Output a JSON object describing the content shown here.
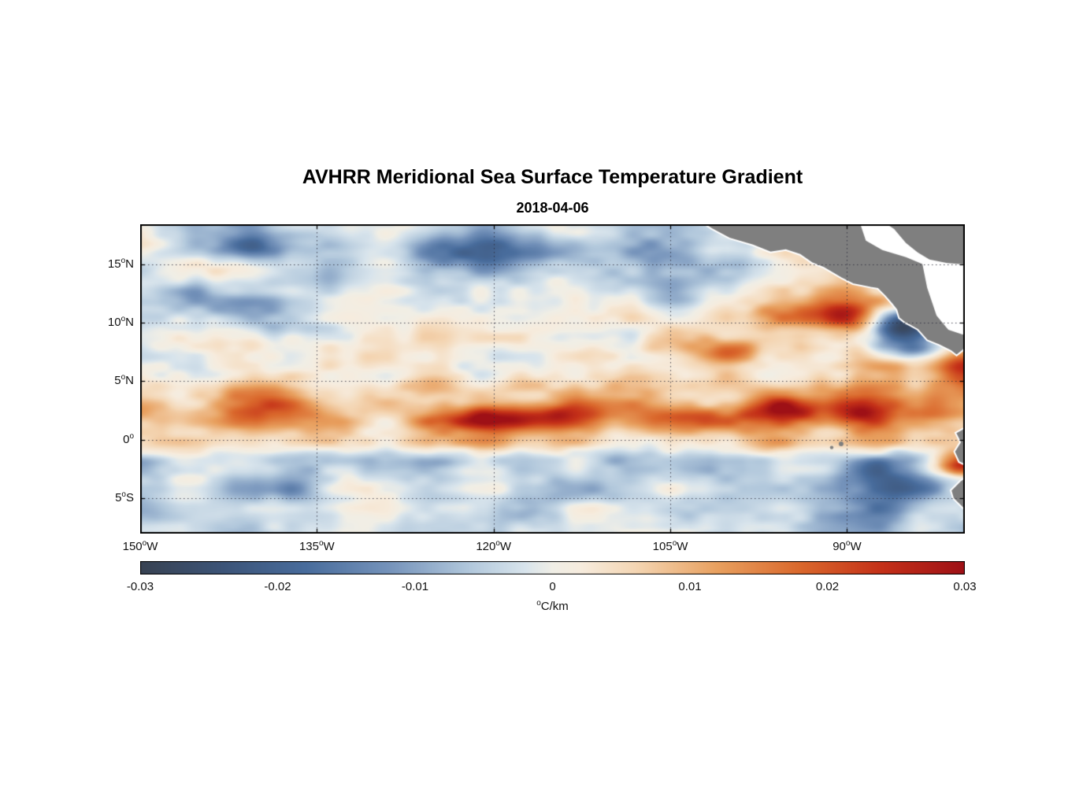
{
  "title": "AVHRR Meridional Sea Surface Temperature Gradient",
  "subtitle": "2018-04-06",
  "chart_data": {
    "type": "heatmap",
    "title": "AVHRR Meridional Sea Surface Temperature Gradient",
    "subtitle": "2018-04-06",
    "deg_char": "o",
    "lon_range": [
      -150,
      -80
    ],
    "lat_range": [
      -8,
      18.4
    ],
    "x_ticks": [
      {
        "num": "150",
        "dir": "W",
        "lon": -150
      },
      {
        "num": "135",
        "dir": "W",
        "lon": -135
      },
      {
        "num": "120",
        "dir": "W",
        "lon": -120
      },
      {
        "num": "105",
        "dir": "W",
        "lon": -105
      },
      {
        "num": "90",
        "dir": "W",
        "lon": -90
      }
    ],
    "y_ticks": [
      {
        "num": "15",
        "dir": "N",
        "lat": 15
      },
      {
        "num": "10",
        "dir": "N",
        "lat": 10
      },
      {
        "num": "5",
        "dir": "N",
        "lat": 5
      },
      {
        "num": "0",
        "dir": "",
        "lat": 0
      },
      {
        "num": "5",
        "dir": "S",
        "lat": -5
      }
    ],
    "grid_lines": {
      "lons": [
        -135,
        -120,
        -105,
        -90
      ],
      "lats": [
        15,
        10,
        5,
        0,
        -5
      ]
    },
    "colorbar": {
      "min": -0.03,
      "max": 0.03,
      "ticks": [
        {
          "label": "-0.03",
          "value": -0.03
        },
        {
          "label": "-0.02",
          "value": -0.02
        },
        {
          "label": "-0.01",
          "value": -0.01
        },
        {
          "label": "0",
          "value": 0
        },
        {
          "label": "0.01",
          "value": 0.01
        },
        {
          "label": "0.02",
          "value": 0.02
        },
        {
          "label": "0.03",
          "value": 0.03
        }
      ],
      "unit_sup": "o",
      "unit_text": "C/km"
    },
    "colormap_stops_milli": [
      [
        -30,
        "#384252"
      ],
      [
        -24,
        "#3c5478"
      ],
      [
        -18,
        "#486c9c"
      ],
      [
        -12,
        "#7492ba"
      ],
      [
        -6,
        "#b2c8dc"
      ],
      [
        -2,
        "#d8e4ec"
      ],
      [
        0,
        "#f0eee6"
      ],
      [
        2,
        "#f6ecde"
      ],
      [
        6,
        "#f4d6b4"
      ],
      [
        12,
        "#e8a05f"
      ],
      [
        18,
        "#da682c"
      ],
      [
        24,
        "#c43018"
      ],
      [
        30,
        "#9e1016"
      ]
    ],
    "grid": {
      "scale": 0.001,
      "units": "°C/km",
      "lons": [
        -150,
        -145,
        -140,
        -135,
        -130,
        -125,
        -120,
        -115,
        -110,
        -105,
        -100,
        -95,
        -90,
        -85,
        -80
      ],
      "lats": [
        18,
        16,
        14,
        12,
        10,
        8,
        6,
        4,
        2,
        0,
        -2,
        -4,
        -6,
        -8
      ],
      "values_milli": [
        [
          -2,
          -4,
          -8,
          -5,
          -3,
          -6,
          -14,
          -10,
          -6,
          -12,
          -4,
          0,
          0,
          0,
          0
        ],
        [
          -3,
          -6,
          -20,
          -8,
          -5,
          -12,
          -18,
          -12,
          -8,
          -16,
          -6,
          10,
          0,
          0,
          0
        ],
        [
          -2,
          -3,
          -12,
          -14,
          -4,
          -3,
          -8,
          -4,
          -10,
          -8,
          -4,
          6,
          10,
          0,
          0
        ],
        [
          -2,
          -8,
          -10,
          -5,
          -2,
          -2,
          -5,
          -3,
          -4,
          -6,
          2,
          8,
          16,
          6,
          0
        ],
        [
          -2,
          -2,
          -6,
          -3,
          0,
          2,
          0,
          2,
          3,
          5,
          8,
          12,
          20,
          -22,
          -4
        ],
        [
          0,
          2,
          3,
          2,
          2,
          3,
          4,
          3,
          6,
          10,
          14,
          10,
          6,
          -14,
          6
        ],
        [
          2,
          1,
          2,
          4,
          2,
          2,
          2,
          2,
          3,
          4,
          5,
          6,
          5,
          10,
          22
        ],
        [
          6,
          8,
          10,
          6,
          8,
          10,
          8,
          6,
          6,
          8,
          8,
          10,
          12,
          10,
          16
        ],
        [
          22,
          12,
          15,
          12,
          10,
          15,
          22,
          20,
          12,
          15,
          20,
          28,
          24,
          15,
          18
        ],
        [
          8,
          5,
          6,
          8,
          5,
          6,
          10,
          8,
          5,
          6,
          8,
          10,
          12,
          15,
          20
        ],
        [
          -15,
          -8,
          -5,
          -10,
          -8,
          -12,
          -10,
          -8,
          -10,
          -5,
          -5,
          -8,
          -20,
          -25,
          25
        ],
        [
          -10,
          -5,
          -8,
          -12,
          -5,
          -10,
          -8,
          -12,
          -8,
          -4,
          -6,
          -10,
          -18,
          -28,
          -10
        ],
        [
          -4,
          -2,
          -4,
          -6,
          -3,
          -5,
          -8,
          -4,
          -3,
          -3,
          -4,
          -5,
          -10,
          -15,
          -8
        ],
        [
          -2,
          -2,
          -3,
          -4,
          -2,
          -3,
          -5,
          -3,
          -2,
          -2,
          -3,
          -4,
          -8,
          -12,
          -5
        ]
      ]
    },
    "land": {
      "color": "#7f7f7f",
      "outline": "#ffffff",
      "polygons": {
        "central_america": [
          [
            -103,
            19
          ],
          [
            -101.5,
            18
          ],
          [
            -100,
            17.2
          ],
          [
            -98,
            16.6
          ],
          [
            -96.5,
            16
          ],
          [
            -95.2,
            16.2
          ],
          [
            -94,
            15.8
          ],
          [
            -93,
            15.1
          ],
          [
            -92,
            14.7
          ],
          [
            -90.5,
            13.8
          ],
          [
            -89.5,
            13.3
          ],
          [
            -88,
            13
          ],
          [
            -87.4,
            12.9
          ],
          [
            -86.8,
            12.3
          ],
          [
            -86.2,
            11.6
          ],
          [
            -85.8,
            11.1
          ],
          [
            -85.6,
            10.4
          ],
          [
            -85.1,
            10
          ],
          [
            -84.7,
            9.8
          ],
          [
            -84,
            9.4
          ],
          [
            -83.2,
            8.5
          ],
          [
            -82.2,
            8.1
          ],
          [
            -81.2,
            7.6
          ],
          [
            -80.7,
            7.2
          ],
          [
            -80.2,
            7.6
          ],
          [
            -79.7,
            8.2
          ],
          [
            -79.2,
            8.7
          ],
          [
            -78.4,
            8.6
          ],
          [
            -77.5,
            9
          ],
          [
            -76.3,
            9.8
          ],
          [
            -76.3,
            19
          ]
        ],
        "caribbean_mask": [
          [
            -89,
            18.8
          ],
          [
            -88.4,
            17
          ],
          [
            -87,
            16.2
          ],
          [
            -85,
            15.6
          ],
          [
            -83.6,
            15
          ],
          [
            -83.2,
            13
          ],
          [
            -82.4,
            10.6
          ],
          [
            -81.4,
            9.4
          ],
          [
            -80.2,
            9
          ],
          [
            -78.6,
            9.2
          ],
          [
            -76.2,
            10
          ],
          [
            -76.2,
            14.8
          ],
          [
            -79,
            14.9
          ],
          [
            -81.5,
            15.1
          ],
          [
            -83,
            15.4
          ],
          [
            -84,
            16
          ],
          [
            -85,
            16.8
          ],
          [
            -86,
            18
          ],
          [
            -87.2,
            18.8
          ]
        ],
        "south_america": [
          [
            -76.3,
            1.5
          ],
          [
            -79.9,
            1.1
          ],
          [
            -80.8,
            0.6
          ],
          [
            -80.4,
            -0.2
          ],
          [
            -80.9,
            -1
          ],
          [
            -80.5,
            -1.9
          ],
          [
            -79,
            -2.6
          ],
          [
            -80.4,
            -3.5
          ],
          [
            -81.2,
            -4.3
          ],
          [
            -81,
            -5
          ],
          [
            -80.1,
            -5.9
          ],
          [
            -79.4,
            -7
          ],
          [
            -78.9,
            -8.5
          ],
          [
            -76.3,
            -8.5
          ]
        ]
      },
      "galapagos": [
        {
          "lon": -90.5,
          "lat": -0.35,
          "r": 3
        },
        {
          "lon": -91.3,
          "lat": -0.65,
          "r": 2.2
        }
      ]
    }
  }
}
